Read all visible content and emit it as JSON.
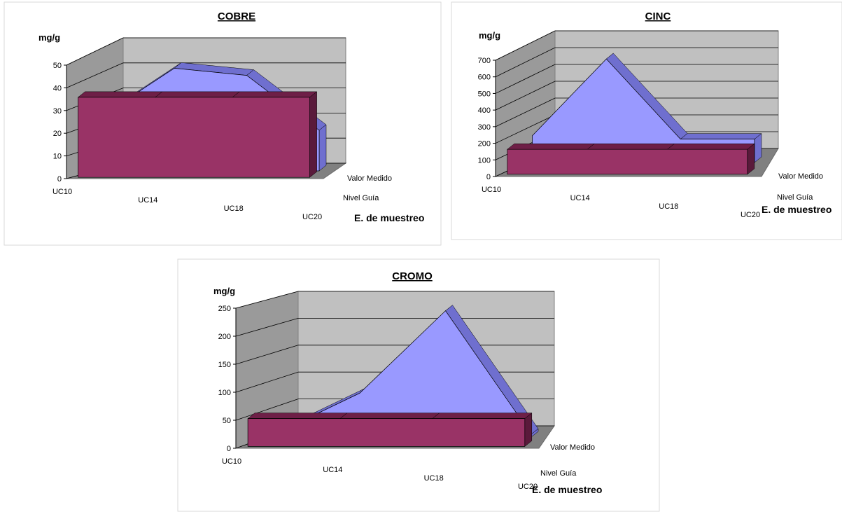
{
  "chart_data": [
    {
      "type": "area",
      "title": "COBRE",
      "ylabel": "mg/g",
      "xlabel": "",
      "depth_label": "E. de muestreo",
      "ylim": [
        0,
        50
      ],
      "yticks": [
        "0",
        "10",
        "20",
        "30",
        "40",
        "50"
      ],
      "categories": [
        "UC10",
        "UC14",
        "UC18",
        "UC20"
      ],
      "series": [
        {
          "name": "Nivel Guía",
          "values": [
            35,
            35,
            35,
            35
          ],
          "color": "#993366"
        },
        {
          "name": "Valor Medido",
          "values": [
            23,
            43,
            40,
            17
          ],
          "color": "#9999ff"
        }
      ]
    },
    {
      "type": "area",
      "title": "CINC",
      "ylabel": "mg/g",
      "xlabel": "",
      "depth_label": "E. de muestreo",
      "ylim": [
        0,
        700
      ],
      "yticks": [
        "0",
        "100",
        "200",
        "300",
        "400",
        "500",
        "600",
        "700"
      ],
      "categories": [
        "UC10",
        "UC14",
        "UC18",
        "UC20"
      ],
      "series": [
        {
          "name": "Nivel Guía",
          "values": [
            150,
            150,
            150,
            150
          ],
          "color": "#993366"
        },
        {
          "name": "Valor Medido",
          "values": [
            160,
            620,
            140,
            140
          ],
          "color": "#9999ff"
        }
      ]
    },
    {
      "type": "area",
      "title": "CROMO",
      "ylabel": "mg/g",
      "xlabel": "",
      "depth_label": "E. de muestreo",
      "ylim": [
        0,
        250
      ],
      "yticks": [
        "0",
        "50",
        "100",
        "150",
        "200",
        "250"
      ],
      "categories": [
        "UC10",
        "UC14",
        "UC18",
        "UC20"
      ],
      "series": [
        {
          "name": "Nivel Guía",
          "values": [
            50,
            50,
            50,
            50
          ],
          "color": "#993366"
        },
        {
          "name": "Valor Medido",
          "values": [
            5,
            80,
            230,
            5
          ],
          "color": "#9999ff"
        }
      ]
    }
  ]
}
